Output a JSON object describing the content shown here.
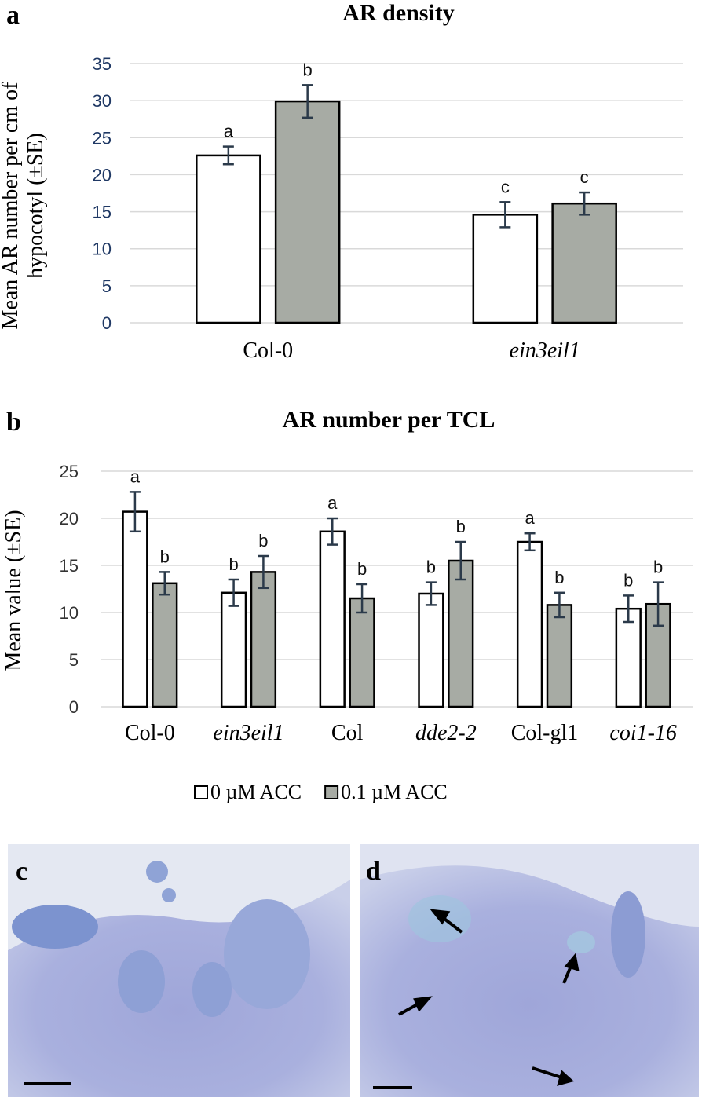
{
  "chart_data": [
    {
      "type": "bar",
      "panel_label": "a",
      "title": "AR density",
      "y_label": [
        "Mean AR number per cm of",
        "hypocotyl (±SE)"
      ],
      "categories": [
        "Col-0",
        "ein3eil1"
      ],
      "italic": [
        false,
        true
      ],
      "series": [
        {
          "color": "#ffffff",
          "values": [
            22.6,
            14.6
          ],
          "errors": [
            1.2,
            1.7
          ],
          "letters": [
            "a",
            "c"
          ]
        },
        {
          "color": "#a7aba4",
          "values": [
            29.9,
            16.1
          ],
          "errors": [
            2.2,
            1.5
          ],
          "letters": [
            "b",
            "c"
          ]
        }
      ],
      "ylim": [
        0,
        35
      ],
      "yticks": [
        0,
        5,
        10,
        15,
        20,
        25,
        30,
        35
      ],
      "grid": true
    },
    {
      "type": "bar",
      "panel_label": "b",
      "title": "AR number per TCL",
      "y_label": [
        "Mean value (±SE)"
      ],
      "categories": [
        "Col-0",
        "ein3eil1",
        "Col",
        "dde2-2",
        "Col-gl1",
        "coi1-16"
      ],
      "italic": [
        false,
        true,
        false,
        true,
        false,
        true
      ],
      "series": [
        {
          "name": "0 µM ACC",
          "color": "#ffffff",
          "values": [
            20.7,
            12.1,
            18.6,
            12.0,
            17.5,
            10.4
          ],
          "errors": [
            2.1,
            1.4,
            1.4,
            1.2,
            0.9,
            1.4
          ],
          "letters": [
            "a",
            "b",
            "a",
            "b",
            "a",
            "b"
          ]
        },
        {
          "name": "0.1 µM ACC",
          "color": "#a7aba4",
          "values": [
            13.1,
            14.3,
            11.5,
            15.5,
            10.8,
            10.9
          ],
          "errors": [
            1.2,
            1.7,
            1.5,
            2.0,
            1.3,
            2.3
          ],
          "letters": [
            "b",
            "b",
            "b",
            "b",
            "b",
            "b"
          ]
        }
      ],
      "ylim": [
        0,
        25
      ],
      "yticks": [
        0,
        5,
        10,
        15,
        20,
        25
      ],
      "grid": true,
      "legend": "bottom"
    }
  ],
  "images": [
    {
      "panel_label": "c"
    },
    {
      "panel_label": "d"
    }
  ]
}
